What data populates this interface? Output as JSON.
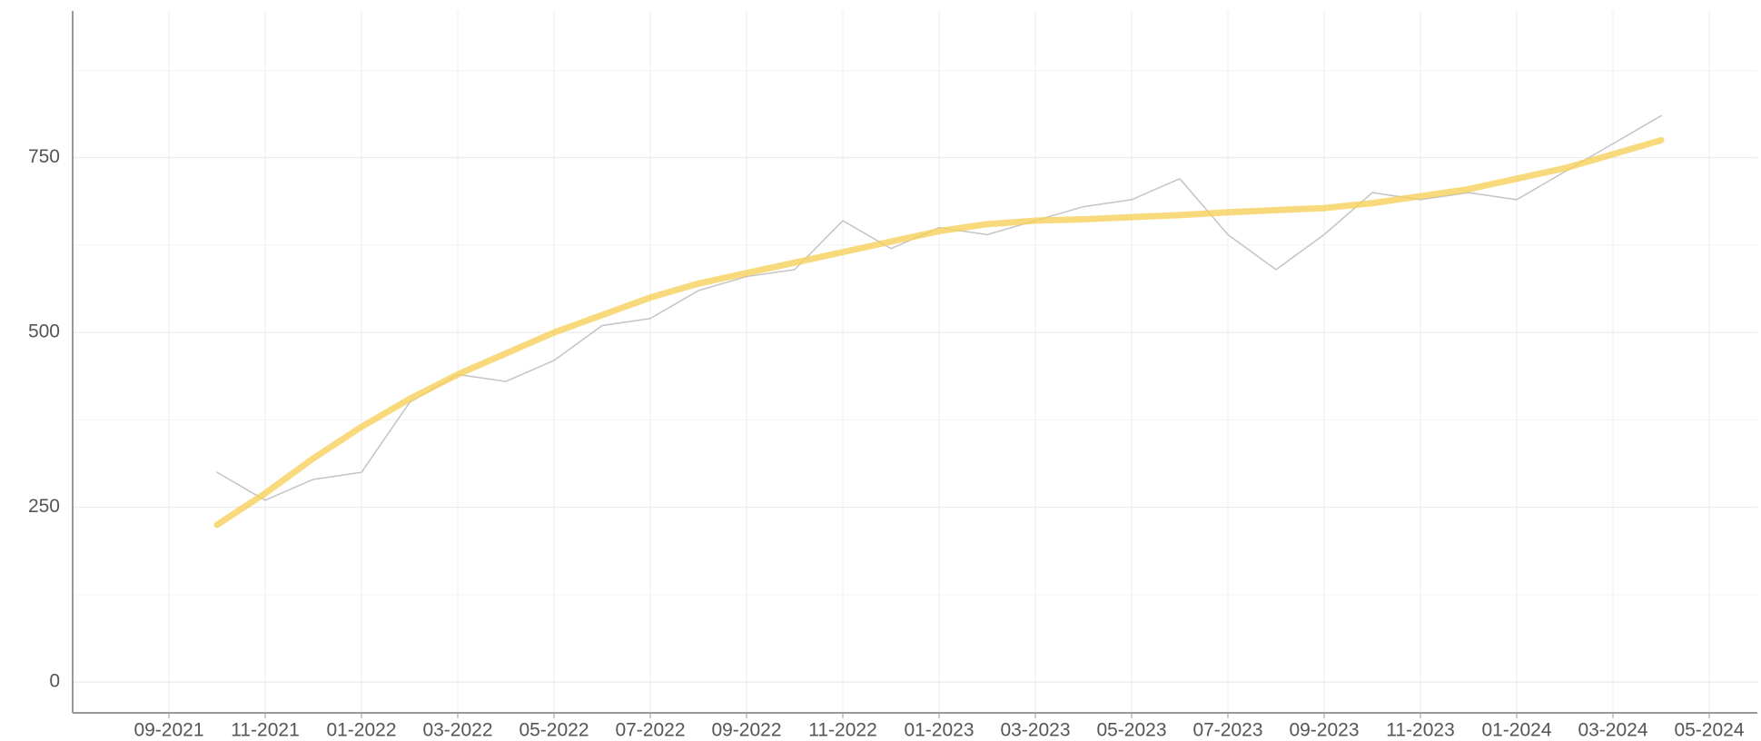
{
  "chart_data": {
    "type": "line",
    "x": [
      "2021-10",
      "2021-11",
      "2021-12",
      "2022-01",
      "2022-02",
      "2022-03",
      "2022-04",
      "2022-05",
      "2022-06",
      "2022-07",
      "2022-08",
      "2022-09",
      "2022-10",
      "2022-11",
      "2022-12",
      "2023-01",
      "2023-02",
      "2023-03",
      "2023-04",
      "2023-05",
      "2023-06",
      "2023-07",
      "2023-08",
      "2023-09",
      "2023-10",
      "2023-11",
      "2023-12",
      "2024-01",
      "2024-02",
      "2024-03",
      "2024-04"
    ],
    "series": [
      {
        "color": "#c4c4c4",
        "values": [
          300,
          260,
          290,
          300,
          400,
          440,
          430,
          460,
          510,
          520,
          560,
          580,
          590,
          660,
          620,
          650,
          640,
          660,
          680,
          690,
          720,
          640,
          590,
          640,
          700,
          690,
          700,
          690,
          730,
          770,
          810
        ]
      },
      {
        "color": "#f6cf5a",
        "values": [
          225,
          270,
          320,
          365,
          405,
          440,
          470,
          500,
          525,
          550,
          570,
          585,
          600,
          615,
          630,
          645,
          655,
          660,
          662,
          665,
          668,
          672,
          675,
          678,
          685,
          695,
          705,
          720,
          735,
          755,
          775
        ]
      }
    ],
    "xlim": [
      "2021-07",
      "2024-06"
    ],
    "xticks": [
      {
        "value": "2021-09",
        "label": "09-2021"
      },
      {
        "value": "2021-11",
        "label": "11-2021"
      },
      {
        "value": "2022-01",
        "label": "01-2022"
      },
      {
        "value": "2022-03",
        "label": "03-2022"
      },
      {
        "value": "2022-05",
        "label": "05-2022"
      },
      {
        "value": "2022-07",
        "label": "07-2022"
      },
      {
        "value": "2022-09",
        "label": "09-2022"
      },
      {
        "value": "2022-11",
        "label": "11-2022"
      },
      {
        "value": "2023-01",
        "label": "01-2023"
      },
      {
        "value": "2023-03",
        "label": "03-2023"
      },
      {
        "value": "2023-05",
        "label": "05-2023"
      },
      {
        "value": "2023-07",
        "label": "07-2023"
      },
      {
        "value": "2023-09",
        "label": "09-2023"
      },
      {
        "value": "2023-11",
        "label": "11-2023"
      },
      {
        "value": "2024-01",
        "label": "01-2024"
      },
      {
        "value": "2024-03",
        "label": "03-2024"
      },
      {
        "value": "2024-05",
        "label": "05-2024"
      }
    ],
    "ylim": [
      -44,
      960
    ],
    "yticks": [
      0,
      250,
      500,
      750
    ],
    "yminorticks": [
      125,
      375,
      625,
      875
    ],
    "grid": true
  }
}
